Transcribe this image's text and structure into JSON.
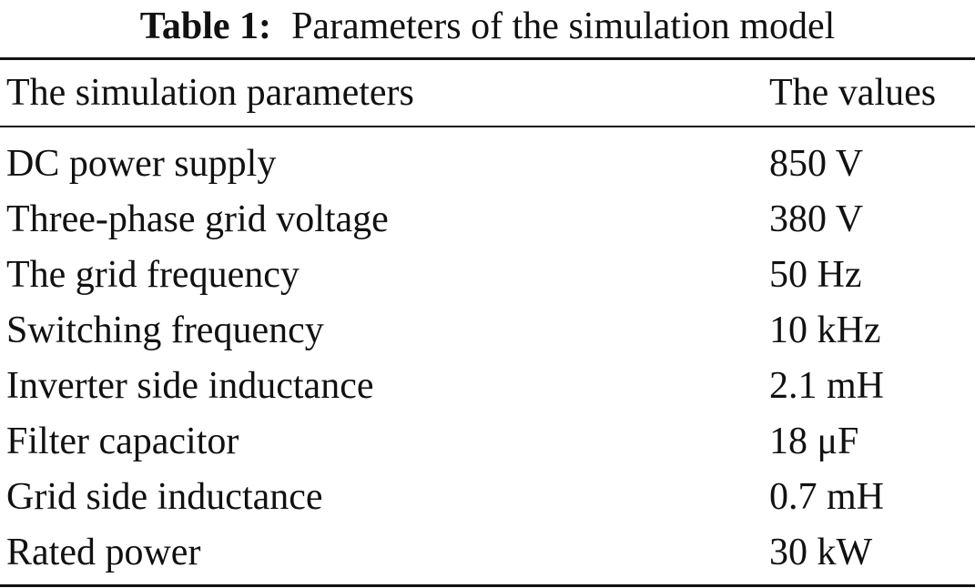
{
  "table": {
    "caption_label": "Table 1:",
    "caption_text": "Parameters of the simulation model",
    "header": {
      "param": "The simulation parameters",
      "value": "The values"
    },
    "rows": [
      {
        "param": "DC power supply",
        "value": "850 V"
      },
      {
        "param": "Three-phase grid voltage",
        "value": "380 V"
      },
      {
        "param": "The grid frequency",
        "value": "50 Hz"
      },
      {
        "param": "Switching frequency",
        "value": "10 kHz"
      },
      {
        "param": "Inverter side inductance",
        "value": "2.1 mH"
      },
      {
        "param": "Filter capacitor",
        "value": "18 μF"
      },
      {
        "param": "Grid side inductance",
        "value": "0.7 mH"
      },
      {
        "param": "Rated power",
        "value": "30 kW"
      }
    ]
  }
}
